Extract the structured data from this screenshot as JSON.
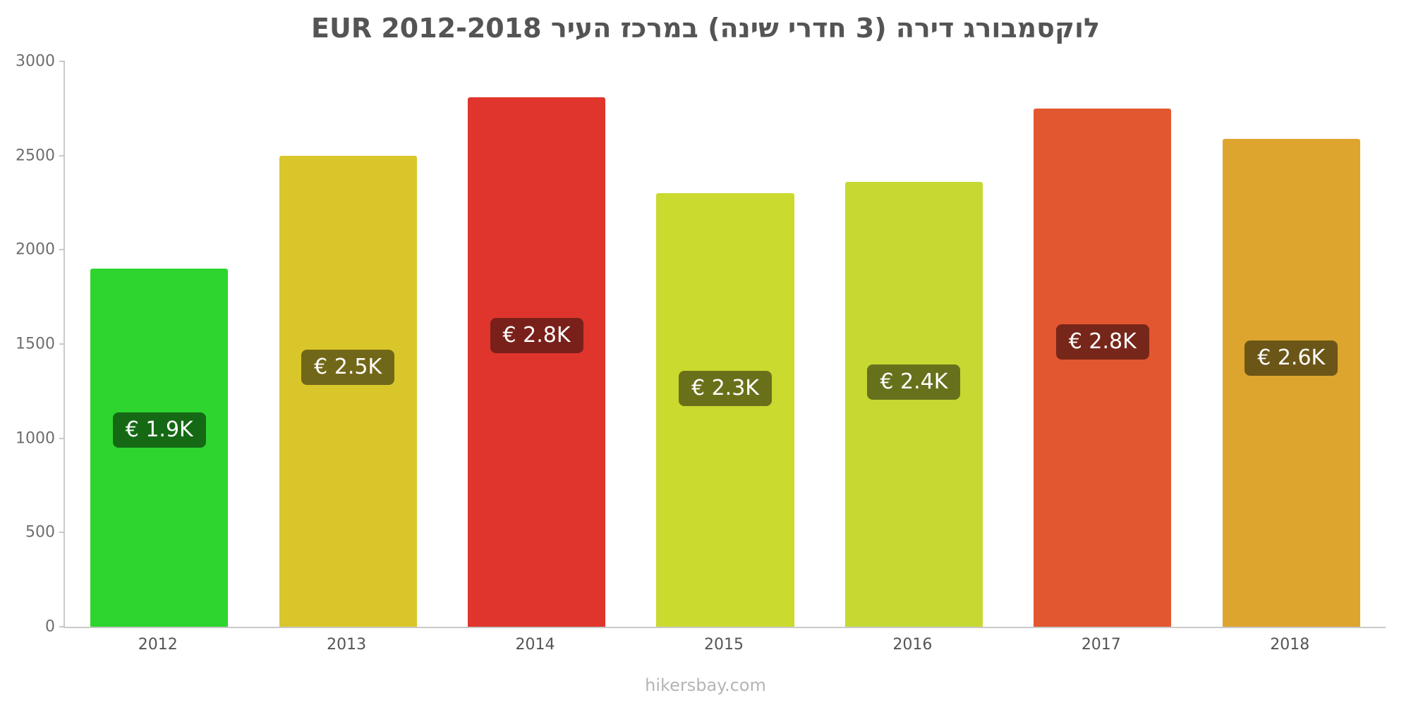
{
  "title": "לוקסמבורג דירה (3 חדרי שינה) במרכז העיר EUR 2012-2018",
  "footer": "hikersbay.com",
  "chart_data": {
    "type": "bar",
    "title": "לוקסמבורג דירה (3 חדרי שינה) במרכז העיר EUR 2012-2018",
    "categories": [
      "2012",
      "2013",
      "2014",
      "2015",
      "2016",
      "2017",
      "2018"
    ],
    "values": [
      1900,
      2500,
      2810,
      2300,
      2360,
      2750,
      2590
    ],
    "value_labels": [
      "€ 1.9K",
      "€ 2.5K",
      "€ 2.8K",
      "€ 2.3K",
      "€ 2.4K",
      "€ 2.8K",
      "€ 2.6K"
    ],
    "bar_colors": [
      "#2ed52e",
      "#d8c62a",
      "#e0352c",
      "#cada2e",
      "#c6d832",
      "#e2572f",
      "#dda42e"
    ],
    "label_bg_colors": [
      "#156915",
      "#716718",
      "#79201a",
      "#6a7019",
      "#67711c",
      "#77261a",
      "#6b5618"
    ],
    "xlabel": "",
    "ylabel": "",
    "ylim": [
      0,
      3000
    ],
    "yticks": [
      0,
      500,
      1000,
      1500,
      2000,
      2500,
      3000
    ],
    "grid": false,
    "legend": false,
    "title_color": "#545454",
    "axis_color": "#c9c9c9"
  }
}
